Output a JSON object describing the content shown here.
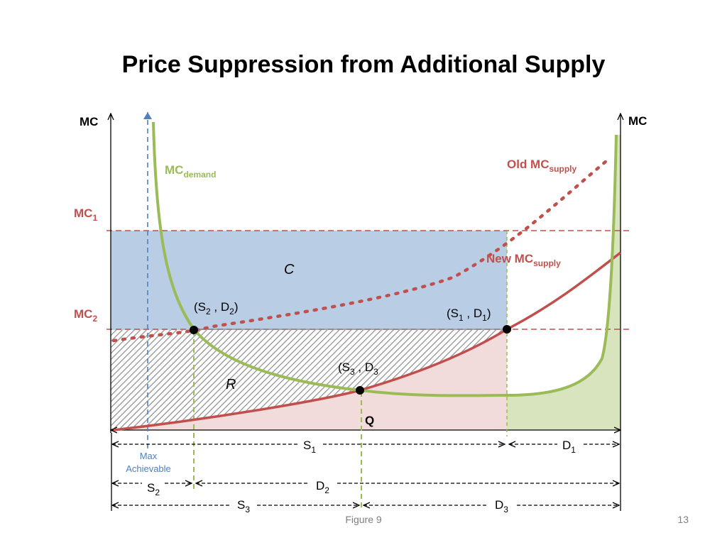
{
  "slide": {
    "title": "Price Suppression from Additional Supply",
    "caption": "Figure 9",
    "page_number": "13"
  },
  "axes": {
    "left_label": "MC",
    "right_label": "MC"
  },
  "levels": {
    "mc1": {
      "main": "MC",
      "sub": "1"
    },
    "mc2": {
      "main": "MC",
      "sub": "2"
    }
  },
  "curves": {
    "demand": {
      "main": "MC",
      "sub": "demand"
    },
    "old_supply": {
      "main": "Old MC",
      "sub": "supply"
    },
    "new_supply": {
      "main": "New MC",
      "sub": "supply"
    }
  },
  "points": {
    "s2d2": {
      "open": "(S",
      "a": "2",
      "mid": " , D",
      "b": "2",
      "close": ")"
    },
    "s1d1": {
      "open": "(S",
      "a": "1",
      "mid": " , D",
      "b": "1",
      "close": ")"
    },
    "s3d3": {
      "open": "(S",
      "a": "3",
      "mid": " , D",
      "b": "3",
      "close": ""
    }
  },
  "regions": {
    "c": "C",
    "r": "R",
    "q": "Q"
  },
  "max_achievable": {
    "line1": "Max",
    "line2": "Achievable"
  },
  "dimensions": {
    "s1": {
      "main": "S",
      "sub": "1"
    },
    "d1": {
      "main": "D",
      "sub": "1"
    },
    "s2": {
      "main": "S",
      "sub": "2"
    },
    "d2": {
      "main": "D",
      "sub": "2"
    },
    "s3": {
      "main": "S",
      "sub": "3"
    },
    "d3": {
      "main": "D",
      "sub": "3"
    }
  },
  "colors": {
    "region_c": "#b9cde5",
    "region_q": "#f2dcdb",
    "region_green": "#d7e4bd",
    "demand_curve": "#9bbb59",
    "supply_curve": "#c0504d",
    "max_line": "#4f81bd",
    "axis": "#000000"
  }
}
